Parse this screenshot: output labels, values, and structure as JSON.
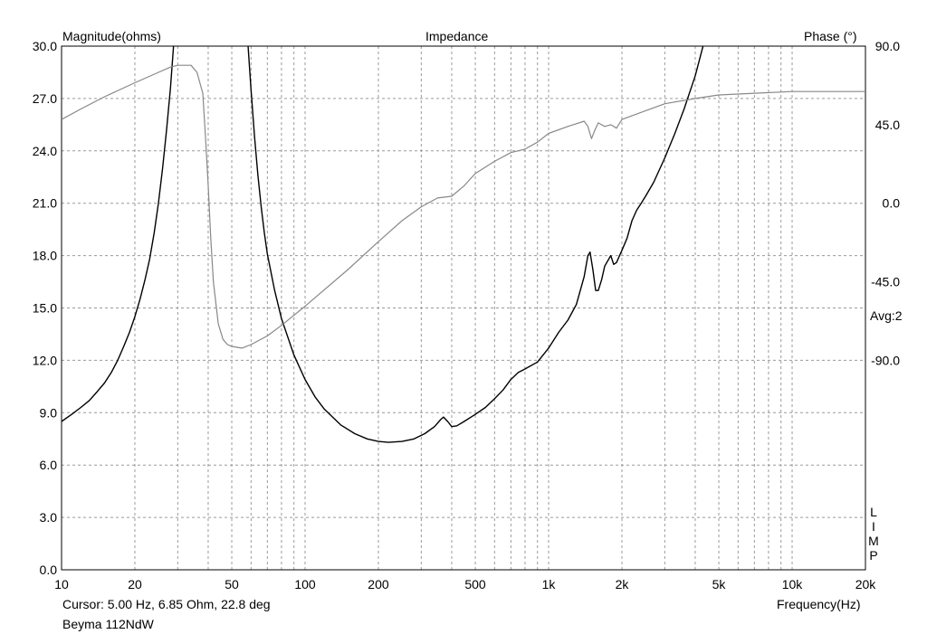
{
  "chart_data": {
    "type": "line",
    "title": "Impedance",
    "ylabel": "Magnitude(ohms)",
    "y2label": "Phase (°)",
    "xlabel": "Frequency(Hz)",
    "xscale": "log",
    "xlim": [
      10,
      20000
    ],
    "ylim": [
      0,
      30
    ],
    "y2lim": [
      -210,
      90
    ],
    "grid": true,
    "x_ticks": [
      {
        "v": 10,
        "label": "10"
      },
      {
        "v": 20,
        "label": "20"
      },
      {
        "v": 50,
        "label": "50"
      },
      {
        "v": 100,
        "label": "100"
      },
      {
        "v": 200,
        "label": "200"
      },
      {
        "v": 500,
        "label": "500"
      },
      {
        "v": 1000,
        "label": "1k"
      },
      {
        "v": 2000,
        "label": "2k"
      },
      {
        "v": 5000,
        "label": "5k"
      },
      {
        "v": 10000,
        "label": "10k"
      },
      {
        "v": 20000,
        "label": "20k"
      }
    ],
    "y_ticks": [
      {
        "v": 0,
        "label": "0.0"
      },
      {
        "v": 3,
        "label": "3.0"
      },
      {
        "v": 6,
        "label": "6.0"
      },
      {
        "v": 9,
        "label": "9.0"
      },
      {
        "v": 12,
        "label": "12.0"
      },
      {
        "v": 15,
        "label": "15.0"
      },
      {
        "v": 18,
        "label": "18.0"
      },
      {
        "v": 21,
        "label": "21.0"
      },
      {
        "v": 24,
        "label": "24.0"
      },
      {
        "v": 27,
        "label": "27.0"
      },
      {
        "v": 30,
        "label": "30.0"
      }
    ],
    "y2_ticks": [
      {
        "v": 90,
        "label": "90.0"
      },
      {
        "v": 45,
        "label": "45.0"
      },
      {
        "v": 0,
        "label": "0.0"
      },
      {
        "v": -45,
        "label": "-45.0"
      },
      {
        "v": -90,
        "label": "-90.0"
      }
    ],
    "series": [
      {
        "name": "Magnitude",
        "axis": "left",
        "color": "#000000",
        "points": [
          [
            10,
            8.5
          ],
          [
            11,
            8.9
          ],
          [
            12,
            9.3
          ],
          [
            13,
            9.7
          ],
          [
            14,
            10.2
          ],
          [
            15,
            10.7
          ],
          [
            16,
            11.3
          ],
          [
            17,
            12.0
          ],
          [
            18,
            12.8
          ],
          [
            19,
            13.6
          ],
          [
            20,
            14.5
          ],
          [
            21,
            15.5
          ],
          [
            22,
            16.6
          ],
          [
            23,
            17.8
          ],
          [
            24,
            19.3
          ],
          [
            25,
            21.0
          ],
          [
            26,
            23.0
          ],
          [
            27,
            25.2
          ],
          [
            28,
            27.6
          ],
          [
            29,
            30.5
          ],
          [
            58,
            30.5
          ],
          [
            60,
            27.5
          ],
          [
            62,
            24.8
          ],
          [
            64,
            22.6
          ],
          [
            66,
            20.8
          ],
          [
            68,
            19.3
          ],
          [
            70,
            18.1
          ],
          [
            75,
            16.0
          ],
          [
            80,
            14.4
          ],
          [
            90,
            12.3
          ],
          [
            100,
            10.9
          ],
          [
            110,
            9.9
          ],
          [
            120,
            9.2
          ],
          [
            140,
            8.3
          ],
          [
            160,
            7.8
          ],
          [
            180,
            7.5
          ],
          [
            200,
            7.35
          ],
          [
            220,
            7.3
          ],
          [
            250,
            7.35
          ],
          [
            280,
            7.5
          ],
          [
            310,
            7.8
          ],
          [
            340,
            8.2
          ],
          [
            360,
            8.6
          ],
          [
            370,
            8.75
          ],
          [
            385,
            8.5
          ],
          [
            400,
            8.2
          ],
          [
            420,
            8.25
          ],
          [
            450,
            8.5
          ],
          [
            500,
            8.9
          ],
          [
            550,
            9.3
          ],
          [
            600,
            9.8
          ],
          [
            650,
            10.3
          ],
          [
            700,
            10.9
          ],
          [
            750,
            11.3
          ],
          [
            800,
            11.5
          ],
          [
            900,
            11.9
          ],
          [
            1000,
            12.7
          ],
          [
            1100,
            13.6
          ],
          [
            1200,
            14.3
          ],
          [
            1300,
            15.2
          ],
          [
            1400,
            16.8
          ],
          [
            1450,
            18.0
          ],
          [
            1480,
            18.2
          ],
          [
            1520,
            17.2
          ],
          [
            1560,
            16.0
          ],
          [
            1600,
            16.0
          ],
          [
            1650,
            16.6
          ],
          [
            1700,
            17.4
          ],
          [
            1800,
            18.0
          ],
          [
            1850,
            17.5
          ],
          [
            1900,
            17.6
          ],
          [
            2000,
            18.3
          ],
          [
            2100,
            19.0
          ],
          [
            2200,
            20.0
          ],
          [
            2300,
            20.6
          ],
          [
            2400,
            21.0
          ],
          [
            2500,
            21.4
          ],
          [
            2700,
            22.2
          ],
          [
            3000,
            23.6
          ],
          [
            3300,
            25.0
          ],
          [
            3600,
            26.4
          ],
          [
            4000,
            28.3
          ],
          [
            4400,
            30.5
          ]
        ]
      },
      {
        "name": "Phase",
        "axis": "right",
        "color": "#888888",
        "points": [
          [
            10,
            48
          ],
          [
            12,
            54
          ],
          [
            15,
            61
          ],
          [
            20,
            69
          ],
          [
            25,
            75
          ],
          [
            28,
            78
          ],
          [
            30,
            79
          ],
          [
            34,
            79
          ],
          [
            36,
            75
          ],
          [
            38,
            63
          ],
          [
            39,
            38
          ],
          [
            40,
            10
          ],
          [
            41,
            -20
          ],
          [
            42,
            -45
          ],
          [
            44,
            -69
          ],
          [
            46,
            -78
          ],
          [
            48,
            -81
          ],
          [
            50,
            -82
          ],
          [
            55,
            -83
          ],
          [
            60,
            -81
          ],
          [
            70,
            -76
          ],
          [
            80,
            -70
          ],
          [
            100,
            -59
          ],
          [
            150,
            -38
          ],
          [
            200,
            -22
          ],
          [
            250,
            -10
          ],
          [
            300,
            -2
          ],
          [
            350,
            3
          ],
          [
            400,
            4
          ],
          [
            450,
            10
          ],
          [
            500,
            17
          ],
          [
            600,
            24
          ],
          [
            700,
            29
          ],
          [
            800,
            31
          ],
          [
            900,
            35
          ],
          [
            1000,
            40
          ],
          [
            1200,
            44
          ],
          [
            1400,
            47
          ],
          [
            1450,
            44
          ],
          [
            1500,
            37
          ],
          [
            1550,
            42
          ],
          [
            1600,
            46
          ],
          [
            1700,
            44
          ],
          [
            1800,
            45
          ],
          [
            1900,
            43
          ],
          [
            2000,
            48
          ],
          [
            2500,
            53
          ],
          [
            3000,
            57
          ],
          [
            4000,
            60
          ],
          [
            5000,
            62
          ],
          [
            7000,
            63
          ],
          [
            10000,
            64
          ],
          [
            15000,
            64
          ],
          [
            20000,
            64
          ]
        ]
      }
    ]
  },
  "annotations": {
    "avg": "Avg:2",
    "limp": [
      "L",
      "I",
      "M",
      "P"
    ],
    "cursor": "Cursor: 5.00 Hz, 6.85 Ohm, 22.8 deg",
    "product": "Beyma 112NdW"
  },
  "colors": {
    "grid": "#9a9a9a",
    "magnitude": "#000000",
    "phase": "#888888"
  }
}
